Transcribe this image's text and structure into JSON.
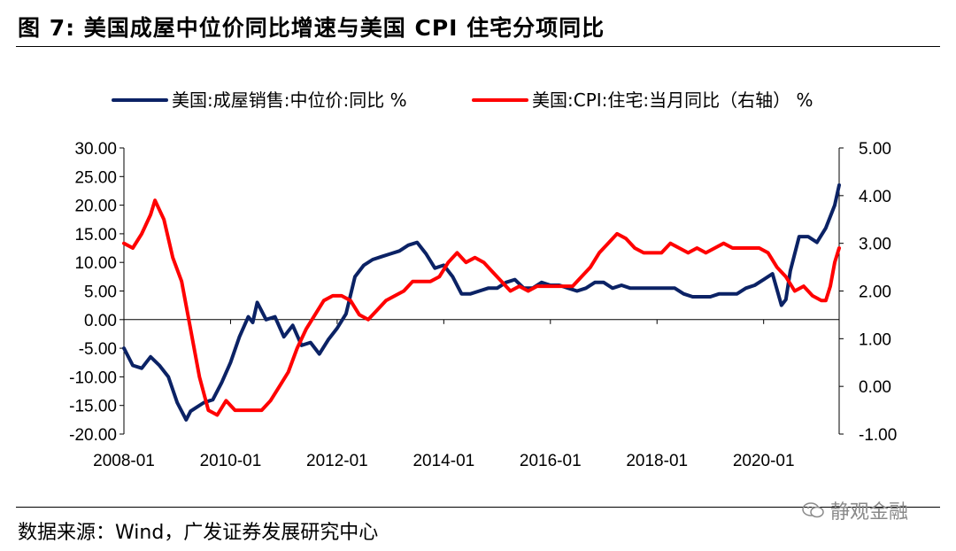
{
  "figure": {
    "title": "图 7:  美国成屋中位价同比增速与美国 CPI 住宅分项同比",
    "source": "数据来源：Wind，广发证券发展研究中心",
    "watermark": "静观金融"
  },
  "chart_data": {
    "type": "line",
    "title": "图 7:  美国成屋中位价同比增速与美国 CPI 住宅分项同比",
    "legend_position": "top",
    "grid": false,
    "x_axis": {
      "range": [
        "2008-01",
        "2021-06"
      ],
      "ticks": [
        "2008-01",
        "2010-01",
        "2012-01",
        "2014-01",
        "2016-01",
        "2018-01",
        "2020-01"
      ]
    },
    "y_left": {
      "range": [
        -20,
        30
      ],
      "ticks": [
        "30.00",
        "25.00",
        "20.00",
        "15.00",
        "10.00",
        "5.00",
        "0.00",
        "-5.00",
        "-10.00",
        "-15.00",
        "-20.00"
      ]
    },
    "y_right": {
      "range": [
        -1,
        5
      ],
      "ticks": [
        "5.00",
        "4.00",
        "3.00",
        "2.00",
        "1.00",
        "0.00",
        "-1.00"
      ]
    },
    "series": [
      {
        "name": "美国:成屋销售:中位价:同比 %",
        "axis": "left",
        "color": "#0b2265",
        "points": [
          [
            "2008-01",
            -5.0
          ],
          [
            "2008-03",
            -8.0
          ],
          [
            "2008-05",
            -8.5
          ],
          [
            "2008-07",
            -6.5
          ],
          [
            "2008-09",
            -8.0
          ],
          [
            "2008-11",
            -10.0
          ],
          [
            "2009-01",
            -14.5
          ],
          [
            "2009-03",
            -17.5
          ],
          [
            "2009-04",
            -16.0
          ],
          [
            "2009-05",
            -15.5
          ],
          [
            "2009-07",
            -14.5
          ],
          [
            "2009-09",
            -14.0
          ],
          [
            "2009-11",
            -11.0
          ],
          [
            "2010-01",
            -7.5
          ],
          [
            "2010-03",
            -3.0
          ],
          [
            "2010-05",
            0.5
          ],
          [
            "2010-06",
            -0.5
          ],
          [
            "2010-07",
            3.0
          ],
          [
            "2010-09",
            0.0
          ],
          [
            "2010-11",
            0.5
          ],
          [
            "2011-01",
            -3.0
          ],
          [
            "2011-03",
            -1.0
          ],
          [
            "2011-05",
            -4.5
          ],
          [
            "2011-07",
            -4.0
          ],
          [
            "2011-09",
            -6.0
          ],
          [
            "2011-11",
            -3.5
          ],
          [
            "2012-01",
            -1.5
          ],
          [
            "2012-03",
            1.0
          ],
          [
            "2012-05",
            7.5
          ],
          [
            "2012-07",
            9.5
          ],
          [
            "2012-09",
            10.5
          ],
          [
            "2012-11",
            11.0
          ],
          [
            "2013-01",
            11.5
          ],
          [
            "2013-03",
            12.0
          ],
          [
            "2013-05",
            13.0
          ],
          [
            "2013-07",
            13.5
          ],
          [
            "2013-09",
            11.5
          ],
          [
            "2013-11",
            9.0
          ],
          [
            "2014-01",
            9.5
          ],
          [
            "2014-03",
            7.5
          ],
          [
            "2014-05",
            4.5
          ],
          [
            "2014-07",
            4.5
          ],
          [
            "2014-09",
            5.0
          ],
          [
            "2014-11",
            5.5
          ],
          [
            "2015-01",
            5.5
          ],
          [
            "2015-03",
            6.5
          ],
          [
            "2015-05",
            7.0
          ],
          [
            "2015-07",
            5.5
          ],
          [
            "2015-09",
            5.5
          ],
          [
            "2015-11",
            6.5
          ],
          [
            "2016-01",
            6.0
          ],
          [
            "2016-03",
            6.0
          ],
          [
            "2016-05",
            5.5
          ],
          [
            "2016-07",
            5.0
          ],
          [
            "2016-09",
            5.5
          ],
          [
            "2016-11",
            6.5
          ],
          [
            "2017-01",
            6.5
          ],
          [
            "2017-03",
            5.5
          ],
          [
            "2017-05",
            6.0
          ],
          [
            "2017-07",
            5.5
          ],
          [
            "2017-09",
            5.5
          ],
          [
            "2017-11",
            5.5
          ],
          [
            "2018-01",
            5.5
          ],
          [
            "2018-03",
            5.5
          ],
          [
            "2018-05",
            5.5
          ],
          [
            "2018-07",
            4.5
          ],
          [
            "2018-09",
            4.0
          ],
          [
            "2018-11",
            4.0
          ],
          [
            "2019-01",
            4.0
          ],
          [
            "2019-03",
            4.5
          ],
          [
            "2019-05",
            4.5
          ],
          [
            "2019-07",
            4.5
          ],
          [
            "2019-09",
            5.5
          ],
          [
            "2019-11",
            6.0
          ],
          [
            "2020-01",
            7.0
          ],
          [
            "2020-03",
            8.0
          ],
          [
            "2020-05",
            2.5
          ],
          [
            "2020-06",
            3.5
          ],
          [
            "2020-07",
            8.5
          ],
          [
            "2020-09",
            14.5
          ],
          [
            "2020-11",
            14.5
          ],
          [
            "2021-01",
            13.5
          ],
          [
            "2021-03",
            16.0
          ],
          [
            "2021-05",
            20.0
          ],
          [
            "2021-06",
            23.5
          ]
        ]
      },
      {
        "name": "美国:CPI:住宅:当月同比（右轴） %",
        "axis": "right",
        "color": "#ff0000",
        "points": [
          [
            "2008-01",
            3.0
          ],
          [
            "2008-03",
            2.9
          ],
          [
            "2008-05",
            3.2
          ],
          [
            "2008-07",
            3.6
          ],
          [
            "2008-08",
            3.9
          ],
          [
            "2008-10",
            3.5
          ],
          [
            "2008-12",
            2.7
          ],
          [
            "2009-02",
            2.2
          ],
          [
            "2009-04",
            1.2
          ],
          [
            "2009-06",
            0.2
          ],
          [
            "2009-08",
            -0.5
          ],
          [
            "2009-10",
            -0.6
          ],
          [
            "2009-12",
            -0.3
          ],
          [
            "2010-02",
            -0.5
          ],
          [
            "2010-04",
            -0.5
          ],
          [
            "2010-06",
            -0.5
          ],
          [
            "2010-08",
            -0.5
          ],
          [
            "2010-10",
            -0.3
          ],
          [
            "2010-12",
            0.0
          ],
          [
            "2011-02",
            0.3
          ],
          [
            "2011-04",
            0.8
          ],
          [
            "2011-06",
            1.2
          ],
          [
            "2011-08",
            1.5
          ],
          [
            "2011-10",
            1.8
          ],
          [
            "2011-12",
            1.9
          ],
          [
            "2012-02",
            1.9
          ],
          [
            "2012-04",
            1.8
          ],
          [
            "2012-06",
            1.5
          ],
          [
            "2012-08",
            1.4
          ],
          [
            "2012-10",
            1.6
          ],
          [
            "2012-12",
            1.8
          ],
          [
            "2013-02",
            1.9
          ],
          [
            "2013-04",
            2.0
          ],
          [
            "2013-06",
            2.2
          ],
          [
            "2013-08",
            2.2
          ],
          [
            "2013-10",
            2.2
          ],
          [
            "2013-12",
            2.3
          ],
          [
            "2014-02",
            2.6
          ],
          [
            "2014-04",
            2.8
          ],
          [
            "2014-06",
            2.6
          ],
          [
            "2014-08",
            2.7
          ],
          [
            "2014-10",
            2.6
          ],
          [
            "2014-12",
            2.4
          ],
          [
            "2015-02",
            2.2
          ],
          [
            "2015-04",
            2.0
          ],
          [
            "2015-06",
            2.1
          ],
          [
            "2015-08",
            2.0
          ],
          [
            "2015-10",
            2.1
          ],
          [
            "2015-12",
            2.1
          ],
          [
            "2016-02",
            2.1
          ],
          [
            "2016-04",
            2.1
          ],
          [
            "2016-06",
            2.1
          ],
          [
            "2016-08",
            2.3
          ],
          [
            "2016-10",
            2.5
          ],
          [
            "2016-12",
            2.8
          ],
          [
            "2017-02",
            3.0
          ],
          [
            "2017-04",
            3.2
          ],
          [
            "2017-06",
            3.1
          ],
          [
            "2017-08",
            2.9
          ],
          [
            "2017-10",
            2.8
          ],
          [
            "2017-12",
            2.8
          ],
          [
            "2018-02",
            2.8
          ],
          [
            "2018-04",
            3.0
          ],
          [
            "2018-06",
            2.9
          ],
          [
            "2018-08",
            2.8
          ],
          [
            "2018-10",
            2.9
          ],
          [
            "2018-12",
            2.8
          ],
          [
            "2019-02",
            2.9
          ],
          [
            "2019-04",
            3.0
          ],
          [
            "2019-06",
            2.9
          ],
          [
            "2019-08",
            2.9
          ],
          [
            "2019-10",
            2.9
          ],
          [
            "2019-12",
            2.9
          ],
          [
            "2020-02",
            2.8
          ],
          [
            "2020-04",
            2.5
          ],
          [
            "2020-06",
            2.3
          ],
          [
            "2020-08",
            2.0
          ],
          [
            "2020-10",
            2.1
          ],
          [
            "2020-12",
            1.9
          ],
          [
            "2021-02",
            1.8
          ],
          [
            "2021-03",
            1.8
          ],
          [
            "2021-04",
            2.1
          ],
          [
            "2021-05",
            2.6
          ],
          [
            "2021-06",
            2.9
          ]
        ]
      }
    ]
  }
}
